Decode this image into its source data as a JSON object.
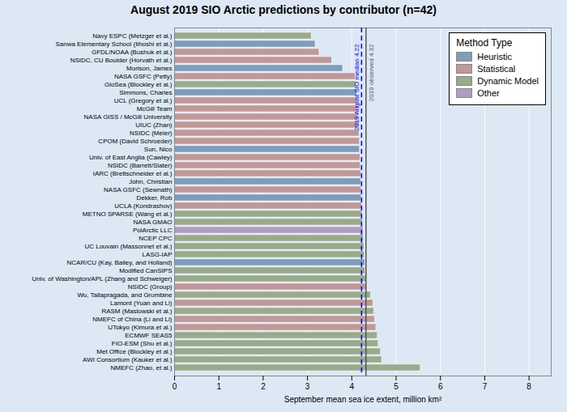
{
  "chart_data": {
    "type": "bar",
    "orientation": "horizontal",
    "title": "August 2019 SIO Arctic predictions by contributor (n=42)",
    "xlabel": "September mean sea ice extent, million km²",
    "categories": [
      "Navy ESPC (Metzger et al.)",
      "Sanwa Elementary School (Iihoshi et al.)",
      "GFDL/NOAA (Bushuk et al.)",
      "NSIDC, CU Boulder (Horvath et al.)",
      "Morison, James",
      "NASA GSFC (Petty)",
      "GloSea (Blockley et al.)",
      "Simmons, Charles",
      "UCL (Gregory et al.)",
      "McGill Team",
      "NASA GISS / McGill University",
      "UIUC (Zhan)",
      "NSIDC (Meier)",
      "CPOM (David Schroeder)",
      "Sun, Nico",
      "Univ. of East Anglia (Cawley)",
      "NSIDC (Barrett/Slater)",
      "IARC (Brettschneider et al.)",
      "John, Christian",
      "NASA GSFC (Sewnath)",
      "Dekker, Rob",
      "UCLA (Kondrashov)",
      "METNO SPARSE (Wang et al.)",
      "NASA GMAO",
      "PolArctic LLC",
      "NCEP CPC",
      "UC Louvain (Massonnet et al.)",
      "LASG-IAP",
      "NCAR/CU (Kay, Bailey, and Holland)",
      "Modified CanSIPS",
      "Univ. of Washington/APL (Zhang and Schweiger)",
      "NSIDC (Group)",
      "Wu, Tallapragada, and Grumbine",
      "Lamont (Yuan and Li)",
      "RASM (Maslowski et al.)",
      "NMEFC of China (Li and Li)",
      "UTokyo (Kimura et al.)",
      "ECMWF SEAS5",
      "FIO-ESM (Shu et al.)",
      "Met Office (Blockley et al.)",
      "AWI Consortium (Kauker et al.)",
      "NMEFC (Zhao, et al.)"
    ],
    "series": [
      {
        "name": "Heuristic",
        "color": "#7f9db9",
        "values": [
          null,
          3.18,
          null,
          null,
          3.8,
          null,
          null,
          4.12,
          null,
          null,
          null,
          null,
          null,
          null,
          4.18,
          null,
          null,
          null,
          4.21,
          null,
          4.22,
          null,
          null,
          null,
          null,
          null,
          null,
          null,
          4.3,
          null,
          null,
          null,
          null,
          null,
          null,
          null,
          null,
          null,
          null,
          null,
          null,
          null
        ]
      },
      {
        "name": "Statistical",
        "color": "#c09898",
        "values": [
          null,
          null,
          3.27,
          3.55,
          null,
          4.08,
          null,
          null,
          4.13,
          4.14,
          4.15,
          4.16,
          4.17,
          4.18,
          null,
          4.19,
          4.2,
          4.21,
          null,
          4.22,
          null,
          4.23,
          null,
          null,
          null,
          null,
          null,
          null,
          null,
          null,
          null,
          4.33,
          null,
          4.48,
          null,
          4.52,
          4.55,
          null,
          null,
          null,
          null,
          null
        ]
      },
      {
        "name": "Dynamic Model",
        "color": "#9aab89",
        "values": [
          3.09,
          null,
          null,
          null,
          null,
          null,
          4.1,
          null,
          null,
          null,
          null,
          null,
          null,
          null,
          null,
          null,
          null,
          null,
          null,
          null,
          null,
          null,
          4.24,
          4.25,
          null,
          4.27,
          4.28,
          4.29,
          null,
          4.31,
          4.32,
          null,
          4.43,
          null,
          4.5,
          null,
          null,
          4.58,
          4.6,
          4.65,
          4.68,
          5.55
        ]
      },
      {
        "name": "Other",
        "color": "#b09ec0",
        "values": [
          null,
          null,
          null,
          null,
          null,
          null,
          null,
          null,
          null,
          null,
          null,
          null,
          null,
          null,
          null,
          null,
          null,
          null,
          null,
          null,
          null,
          null,
          null,
          null,
          4.26,
          null,
          null,
          null,
          null,
          null,
          null,
          null,
          null,
          null,
          null,
          null,
          null,
          null,
          null,
          null,
          null,
          null
        ]
      }
    ],
    "xlim": [
      0,
      8.5
    ],
    "xticks": [
      0,
      1,
      2,
      3,
      4,
      5,
      6,
      7,
      8
    ],
    "grid": true,
    "legend": "upper right",
    "legend_title": "Method Type",
    "annotations": [
      {
        "x": 4.32,
        "label": "2019 observed 4.32",
        "color": "#555555",
        "line_style": "solid"
      },
      {
        "x": 4.22,
        "label": "2019 August SIO median 4.22",
        "color": "blue",
        "line_style": "dashed"
      }
    ],
    "background_color": "#dce9f5"
  }
}
